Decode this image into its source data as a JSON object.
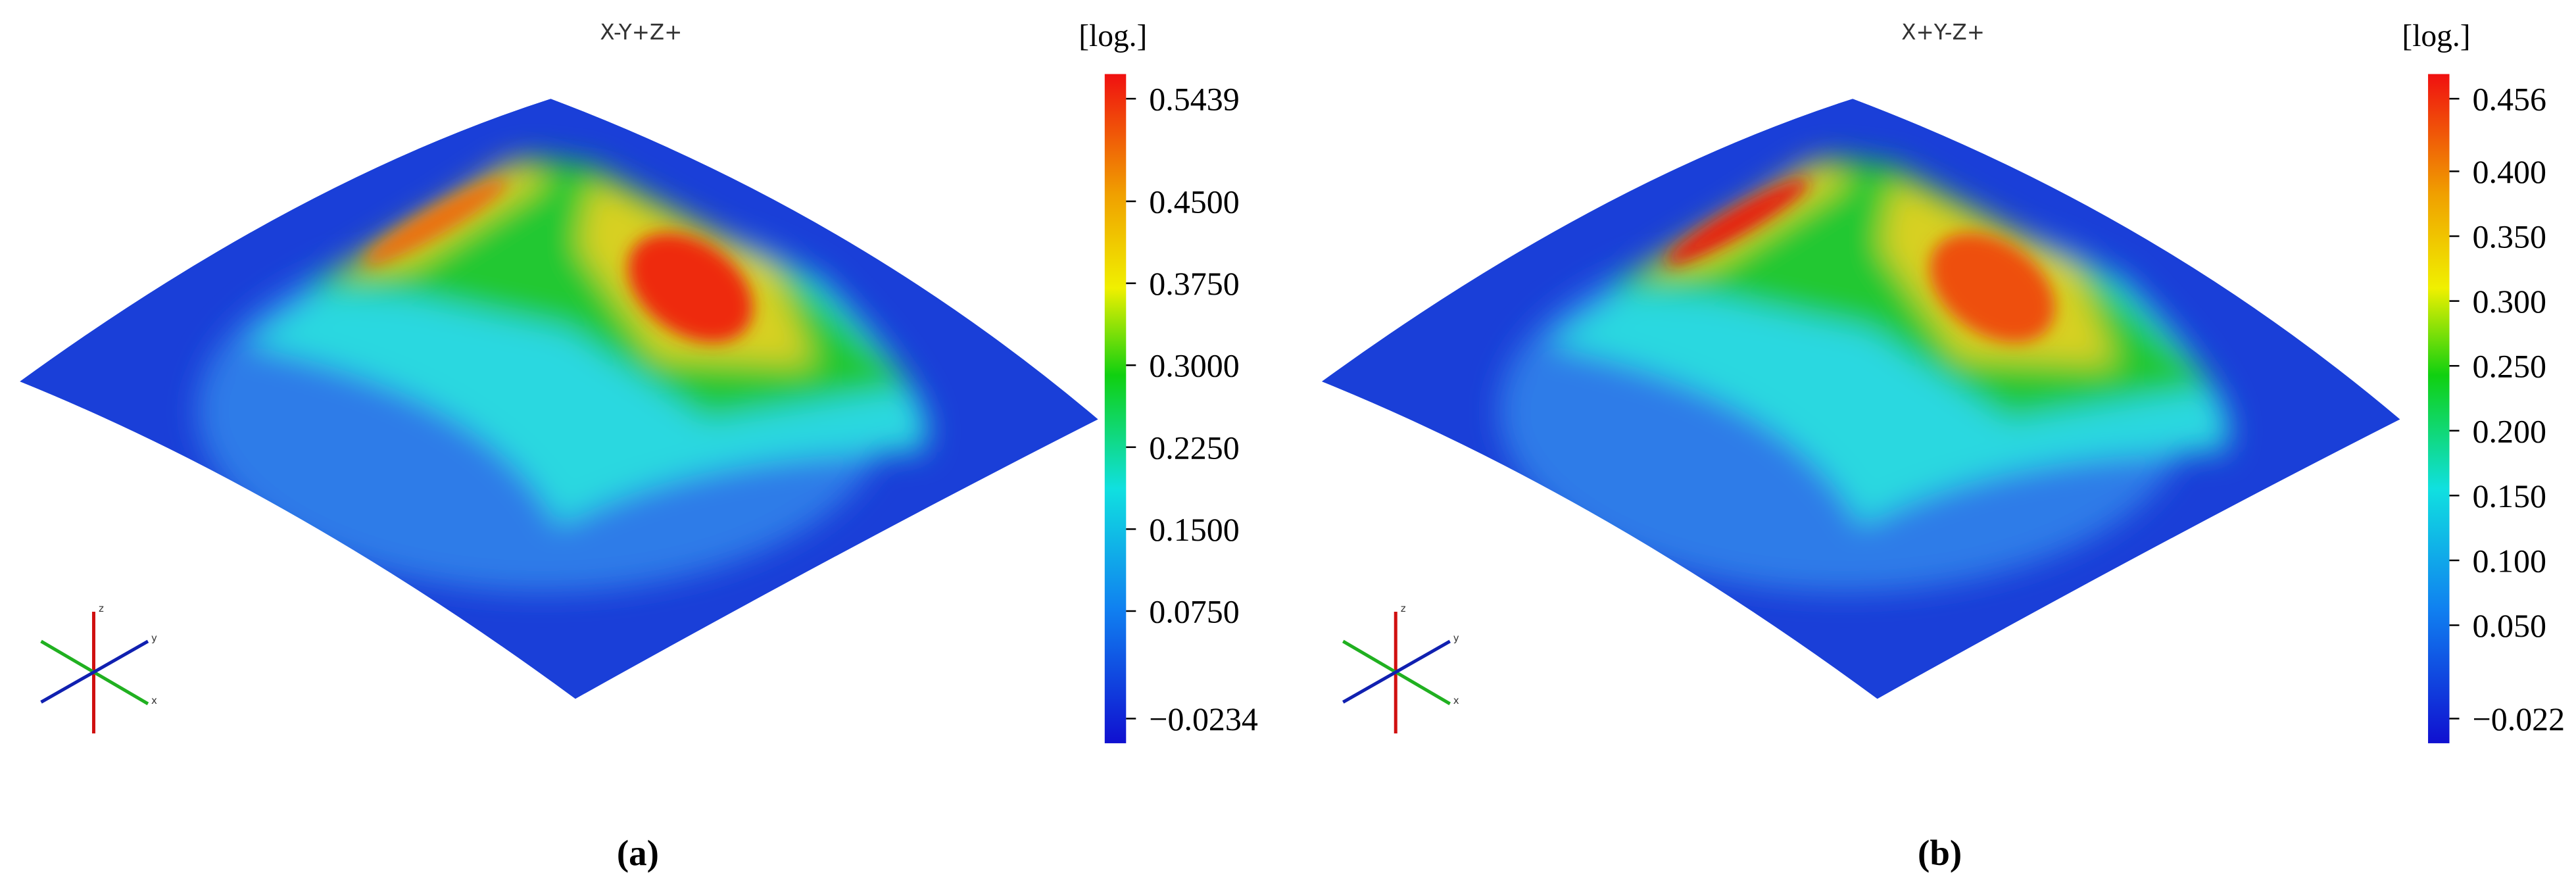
{
  "panels": [
    {
      "view": "X-Y+Z+",
      "unit": "[log.]",
      "ticks": [
        "0.5439",
        "0.4500",
        "0.3750",
        "0.3000",
        "0.2250",
        "0.1500",
        "0.0750",
        "−0.0234"
      ],
      "triad": [
        "x",
        "y",
        "z"
      ],
      "caption": "(a)"
    },
    {
      "view": "X+Y-Z+",
      "unit": "[log.]",
      "ticks": [
        "0.456",
        "0.400",
        "0.350",
        "0.300",
        "0.250",
        "0.200",
        "0.150",
        "0.100",
        "0.050",
        "−0.022"
      ],
      "triad": [
        "x",
        "y",
        "z"
      ],
      "caption": "(b)"
    }
  ]
}
